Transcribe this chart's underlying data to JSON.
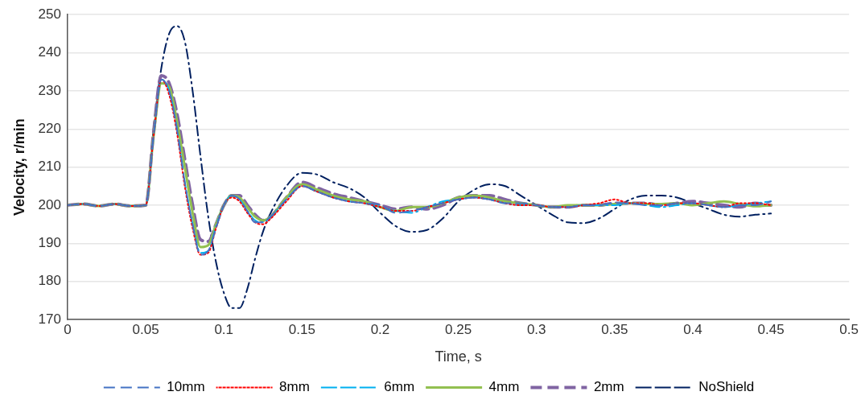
{
  "chart_data": {
    "type": "line",
    "xlabel": "Time, s",
    "ylabel": "Velocity, r/min",
    "x": [
      0,
      0.01,
      0.02,
      0.03,
      0.04,
      0.05,
      0.055,
      0.06,
      0.065,
      0.07,
      0.075,
      0.08,
      0.085,
      0.09,
      0.095,
      0.1,
      0.105,
      0.11,
      0.115,
      0.12,
      0.125,
      0.13,
      0.14,
      0.15,
      0.16,
      0.17,
      0.18,
      0.19,
      0.2,
      0.21,
      0.22,
      0.23,
      0.24,
      0.25,
      0.26,
      0.27,
      0.28,
      0.29,
      0.3,
      0.31,
      0.32,
      0.33,
      0.34,
      0.35,
      0.36,
      0.37,
      0.38,
      0.39,
      0.4,
      0.41,
      0.42,
      0.43,
      0.44,
      0.45
    ],
    "series": [
      {
        "name": "10mm",
        "color": "#4472c4",
        "line_style": "dashed",
        "values": [
          200,
          200.3,
          199.8,
          200.3,
          199.8,
          200,
          218,
          233,
          230,
          220,
          206,
          195,
          187,
          188,
          194,
          200,
          202.5,
          201.5,
          198.5,
          195.5,
          195.5,
          197,
          201.5,
          205,
          203.5,
          202,
          201,
          200.5,
          200,
          198,
          198.5,
          199.5,
          200.5,
          201.5,
          202,
          201.5,
          200.5,
          200.5,
          200,
          199.5,
          199.5,
          200,
          200,
          200.5,
          200.5,
          200,
          200,
          200.5,
          200.5,
          200,
          199.5,
          200,
          200,
          201
        ]
      },
      {
        "name": "8mm",
        "color": "#ff0000",
        "line_style": "dotted",
        "values": [
          200,
          200.3,
          199.8,
          200.3,
          199.8,
          200,
          218,
          233,
          229,
          219,
          205,
          194,
          187,
          187.5,
          194,
          200,
          202,
          201,
          198,
          195.5,
          195,
          196.5,
          201,
          205,
          203.5,
          202,
          201,
          200.5,
          199.5,
          198.5,
          198.5,
          199.5,
          200.5,
          201.5,
          202,
          201.5,
          200.5,
          200,
          200,
          199.5,
          199.5,
          200,
          200.5,
          201.5,
          200.5,
          200.5,
          200,
          200.5,
          200.5,
          200,
          199.5,
          200.5,
          200.5,
          200
        ]
      },
      {
        "name": "6mm",
        "color": "#00b0f0",
        "line_style": "dashdot",
        "values": [
          200,
          200.3,
          199.8,
          200.3,
          199.8,
          200,
          218,
          233,
          230,
          220,
          206,
          195,
          187.5,
          188,
          194.5,
          200,
          202.5,
          201.5,
          198.5,
          196,
          195.5,
          197,
          201.5,
          205,
          203.5,
          202,
          201,
          200.5,
          199.5,
          198.5,
          198,
          199.5,
          201,
          201.5,
          202,
          201.5,
          200.5,
          200,
          200,
          199.5,
          199.5,
          200,
          200,
          200,
          200.5,
          200,
          199.5,
          200,
          200.5,
          200,
          199.5,
          200,
          200.5,
          201
        ]
      },
      {
        "name": "4mm",
        "color": "#92c050",
        "line_style": "solid",
        "values": [
          200,
          200.3,
          199.8,
          200.3,
          199.8,
          200,
          218,
          232,
          231,
          222,
          210,
          198,
          189,
          189.5,
          195,
          200,
          202.5,
          202,
          199.5,
          197,
          196,
          197,
          202,
          205.5,
          204,
          202.5,
          201.5,
          201,
          199.5,
          198.5,
          199.5,
          199.5,
          200.5,
          202,
          202.5,
          202,
          201,
          200.5,
          200,
          199.5,
          200,
          200,
          200,
          200.3,
          200.5,
          200.3,
          200.3,
          200.5,
          200,
          200.5,
          201,
          200.3,
          199.7,
          200
        ]
      },
      {
        "name": "2mm",
        "color": "#8064a2",
        "line_style": "dashed",
        "values": [
          200,
          200.3,
          199.8,
          200.3,
          199.8,
          200,
          219,
          234,
          232,
          224,
          212,
          200,
          191,
          190.5,
          195,
          200,
          202.5,
          202.5,
          200,
          197.5,
          196,
          197,
          202,
          206,
          204.5,
          203,
          202,
          201,
          200,
          199,
          199.5,
          199,
          200,
          202,
          202.5,
          202.5,
          201.5,
          200.5,
          200,
          199.5,
          199.5,
          200,
          200,
          200.5,
          200.5,
          200.5,
          200,
          200.5,
          201,
          200.5,
          200,
          199.5,
          200.5,
          200
        ]
      },
      {
        "name": "NoShield",
        "color": "#002060",
        "line_style": "dashdot",
        "values": [
          200,
          200.3,
          199.8,
          200.3,
          199.8,
          200,
          220,
          236,
          245,
          247,
          243,
          230,
          213,
          197,
          185,
          177,
          173,
          173,
          178,
          186,
          193,
          198,
          205,
          208.5,
          208,
          206,
          204.5,
          202,
          198,
          194.5,
          193,
          193.5,
          196.5,
          201,
          204,
          205.5,
          205,
          202.5,
          200,
          197.5,
          195.5,
          195.3,
          196.5,
          199,
          201.5,
          202.5,
          202.5,
          202,
          200.5,
          199,
          197.5,
          197,
          197.5,
          197.8
        ]
      }
    ],
    "xlim": [
      0,
      0.5
    ],
    "xticks": [
      0,
      0.05,
      0.1,
      0.15,
      0.2,
      0.25,
      0.3,
      0.35,
      0.4,
      0.45,
      0.5
    ],
    "ylim": [
      170,
      250
    ],
    "yticks": [
      170,
      180,
      190,
      200,
      210,
      220,
      230,
      240,
      250
    ],
    "grid": "y",
    "legend": "bottom",
    "marker": "none"
  }
}
